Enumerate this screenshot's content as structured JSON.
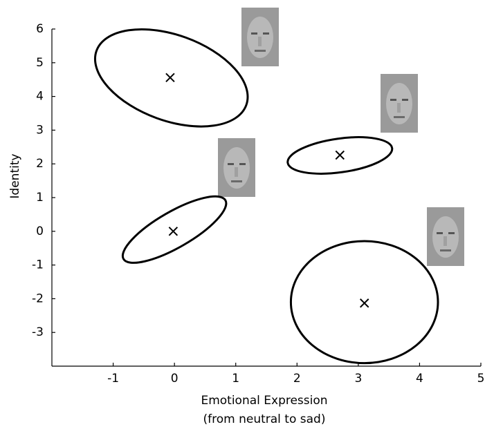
{
  "chart_data": {
    "type": "scatter",
    "xlabel": [
      "Emotional Expression",
      "(from neutral to sad)"
    ],
    "ylabel": "Identity",
    "xlim": [
      -2,
      5
    ],
    "ylim": [
      -4,
      6
    ],
    "xticks": [
      -1,
      0,
      1,
      2,
      3,
      4,
      5
    ],
    "yticks": [
      -3,
      -2,
      -1,
      0,
      1,
      2,
      3,
      4,
      5,
      6
    ],
    "x": [
      -0.07,
      2.7,
      -0.02,
      3.1
    ],
    "y": [
      4.56,
      2.26,
      0,
      -2.13
    ],
    "ellipses": [
      {
        "cx": -0.05,
        "cy": 4.55,
        "rx": 1.3,
        "ry": 1.27,
        "angle": 20
      },
      {
        "cx": 2.7,
        "cy": 2.25,
        "rx": 0.86,
        "ry": 0.5,
        "angle": -8
      },
      {
        "cx": 0.0,
        "cy": 0.05,
        "rx": 0.96,
        "ry": 0.53,
        "angle": -30
      },
      {
        "cx": 3.1,
        "cy": -2.1,
        "rx": 1.2,
        "ry": 1.81,
        "angle": 0
      }
    ]
  }
}
